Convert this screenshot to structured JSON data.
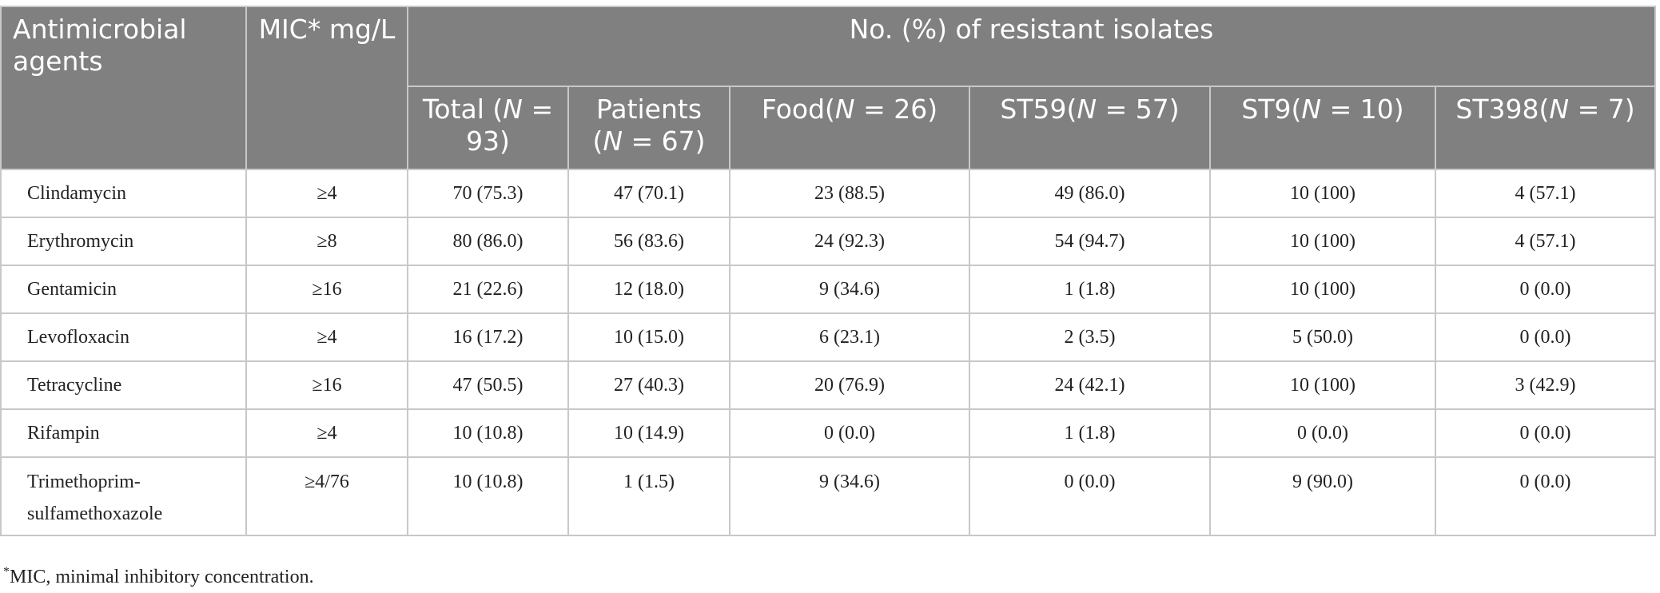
{
  "table": {
    "header": {
      "agent": "Antimicrobial agents",
      "mic": "MIC* mg/L",
      "group": "No. (%) of resistant isolates",
      "columns": [
        [
          "Total (",
          "N",
          " = 93)"
        ],
        [
          "Patients (",
          "N",
          " = 67)"
        ],
        [
          "Food(",
          "N",
          " = 26)"
        ],
        [
          "ST59(",
          "N",
          " = 57)"
        ],
        [
          "ST9(",
          "N",
          " = 10)"
        ],
        [
          "ST398(",
          "N",
          " = 7)"
        ]
      ]
    },
    "rows": [
      [
        "Clindamycin",
        "≥4",
        "70 (75.3)",
        "47 (70.1)",
        "23 (88.5)",
        "49 (86.0)",
        "10 (100)",
        "4 (57.1)"
      ],
      [
        "Erythromycin",
        "≥8",
        "80 (86.0)",
        "56 (83.6)",
        "24 (92.3)",
        "54 (94.7)",
        "10 (100)",
        "4 (57.1)"
      ],
      [
        "Gentamicin",
        "≥16",
        "21 (22.6)",
        "12 (18.0)",
        "9 (34.6)",
        "1 (1.8)",
        "10 (100)",
        "0 (0.0)"
      ],
      [
        "Levofloxacin",
        "≥4",
        "16 (17.2)",
        "10 (15.0)",
        "6 (23.1)",
        "2 (3.5)",
        "5 (50.0)",
        "0 (0.0)"
      ],
      [
        "Tetracycline",
        "≥16",
        "47 (50.5)",
        "27 (40.3)",
        "20 (76.9)",
        "24 (42.1)",
        "10 (100)",
        "3 (42.9)"
      ],
      [
        "Rifampin",
        "≥4",
        "10 (10.8)",
        "10 (14.9)",
        "0 (0.0)",
        "1 (1.8)",
        "0 (0.0)",
        "0 (0.0)"
      ],
      [
        "Trimethoprim-sulfamethoxazole",
        "≥4/76",
        "10 (10.8)",
        "1 (1.5)",
        "9 (34.6)",
        "0 (0.0)",
        "9 (90.0)",
        "0 (0.0)"
      ]
    ]
  },
  "footnote": [
    "*",
    "MIC, minimal inhibitory concentration."
  ]
}
